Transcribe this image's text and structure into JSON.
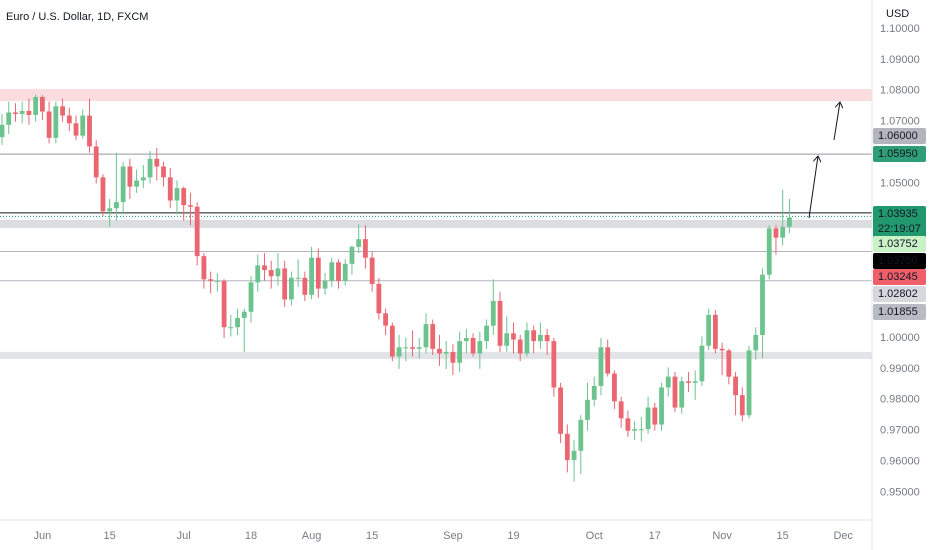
{
  "chart_data": {
    "type": "candlestick",
    "title": "Euro / U.S. Dollar, 1D, FXCM",
    "y_axis_label": "USD",
    "up_color": "#6cc38e",
    "down_color": "#ea6670",
    "ylim": [
      0.9411,
      1.1094
    ],
    "yticks": [
      {
        "value": 1.1,
        "label": "1.10000"
      },
      {
        "value": 1.09,
        "label": "1.09000"
      },
      {
        "value": 1.08,
        "label": "1.08000"
      },
      {
        "value": 1.07,
        "label": "1.07000"
      },
      {
        "value": 1.05,
        "label": "1.05000"
      },
      {
        "value": 1.0,
        "label": "1.00000"
      },
      {
        "value": 0.99,
        "label": "0.99000"
      },
      {
        "value": 0.98,
        "label": "0.98000"
      },
      {
        "value": 0.97,
        "label": "0.97000"
      },
      {
        "value": 0.96,
        "label": "0.96000"
      },
      {
        "value": 0.95,
        "label": "0.95000"
      }
    ],
    "grid": false,
    "categories": [
      null,
      null,
      null,
      null,
      null,
      null,
      "Jun",
      null,
      null,
      null,
      null,
      null,
      null,
      null,
      null,
      null,
      "15",
      null,
      null,
      null,
      null,
      null,
      null,
      null,
      null,
      null,
      null,
      "Jul",
      null,
      null,
      null,
      null,
      null,
      null,
      null,
      null,
      null,
      "18",
      null,
      null,
      null,
      null,
      null,
      null,
      null,
      null,
      "Aug",
      null,
      null,
      null,
      null,
      null,
      null,
      null,
      null,
      "15",
      null,
      null,
      null,
      null,
      null,
      null,
      null,
      null,
      null,
      null,
      null,
      "Sep",
      null,
      null,
      null,
      null,
      null,
      null,
      null,
      null,
      "19",
      null,
      null,
      null,
      null,
      null,
      null,
      null,
      null,
      null,
      null,
      null,
      "Oct",
      null,
      null,
      null,
      null,
      null,
      null,
      null,
      null,
      "17",
      null,
      null,
      null,
      null,
      null,
      null,
      null,
      null,
      null,
      "Nov",
      null,
      null,
      null,
      null,
      null,
      null,
      null,
      null,
      "15",
      null,
      null,
      null,
      null,
      null,
      null,
      null,
      null,
      "Dec"
    ],
    "open": [
      1.065,
      1.069,
      1.073,
      1.0725,
      1.0735,
      1.0722,
      1.078,
      1.0733,
      1.0648,
      1.075,
      1.072,
      1.0695,
      1.0655,
      1.072,
      1.062,
      1.052,
      1.041,
      1.042,
      1.044,
      1.0555,
      1.049,
      1.051,
      1.052,
      1.058,
      1.0555,
      1.052,
      1.0445,
      1.0485,
      1.043,
      1.0425,
      1.0265,
      1.019,
      1.0185,
      1.0185,
      1.0035,
      1.0035,
      1.0065,
      1.0085,
      1.018,
      1.0235,
      1.022,
      1.02,
      1.0225,
      1.0125,
      1.0195,
      1.0195,
      1.014,
      1.026,
      1.016,
      1.0185,
      1.0245,
      1.0185,
      1.024,
      1.0295,
      1.032,
      1.026,
      1.0175,
      1.008,
      1.004,
      0.994,
      0.997,
      0.997,
      0.9965,
      0.997,
      1.0045,
      0.9965,
      0.995,
      0.9955,
      0.992,
      0.999,
      1.0,
      0.995,
      0.999,
      1.004,
      1.012,
      0.9975,
      1.0015,
      0.9995,
      0.995,
      1.0025,
      0.999,
      1.001,
      0.999,
      0.984,
      0.969,
      0.9605,
      0.9635,
      0.9735,
      0.98,
      0.9845,
      0.997,
      0.9885,
      0.9795,
      0.974,
      0.97,
      0.9705,
      0.9705,
      0.9775,
      0.972,
      0.984,
      0.9875,
      0.9775,
      0.986,
      0.9855,
      0.986,
      0.9975,
      1.0075,
      0.9965,
      0.996,
      0.9875,
      0.9815,
      0.975,
      0.996,
      1.001,
      1.0205,
      1.0355,
      1.0325,
      1.036,
      null,
      null,
      null,
      null,
      null,
      null,
      null,
      null
    ],
    "high": [
      1.0725,
      1.0765,
      1.076,
      1.0765,
      1.0775,
      1.0788,
      1.0786,
      1.0765,
      1.0765,
      1.0775,
      1.0745,
      1.072,
      1.074,
      1.0775,
      1.064,
      1.053,
      1.045,
      1.06,
      1.057,
      1.058,
      1.0545,
      1.056,
      1.0605,
      1.0615,
      1.057,
      1.055,
      1.051,
      1.049,
      1.047,
      1.044,
      1.0275,
      1.0215,
      1.021,
      1.019,
      1.0075,
      1.0095,
      1.0095,
      1.02,
      1.027,
      1.0275,
      1.025,
      1.0275,
      1.025,
      1.0215,
      1.0255,
      1.0215,
      1.0295,
      1.029,
      1.021,
      1.026,
      1.0255,
      1.0255,
      1.03,
      1.0368,
      1.0365,
      1.028,
      1.0195,
      1.0095,
      1.005,
      1.001,
      1.0,
      1.0025,
      1.0,
      1.008,
      1.006,
      1.001,
      0.999,
      0.998,
      1.002,
      1.003,
      1.0015,
      1.002,
      1.006,
      1.019,
      1.015,
      1.007,
      1.005,
      1.001,
      1.005,
      1.004,
      1.005,
      1.003,
      1.0,
      0.9855,
      0.972,
      0.967,
      0.975,
      0.9855,
      0.9875,
      1.0,
      0.9995,
      0.9895,
      0.981,
      0.9765,
      0.973,
      0.9745,
      0.981,
      0.979,
      0.9855,
      0.9905,
      0.989,
      0.9875,
      0.989,
      0.9895,
      1.0005,
      1.0095,
      1.009,
      0.9985,
      0.9965,
      0.989,
      0.984,
      0.9975,
      1.0035,
      1.0225,
      1.0365,
      1.0365,
      1.048,
      1.045,
      null,
      null,
      null,
      null,
      null,
      null,
      null,
      null
    ],
    "low": [
      1.0625,
      1.066,
      1.07,
      1.0695,
      1.069,
      1.07,
      1.0705,
      1.063,
      1.063,
      1.07,
      1.067,
      1.064,
      1.0645,
      1.06,
      1.05,
      1.0395,
      1.036,
      1.038,
      1.04,
      1.045,
      1.047,
      1.0485,
      1.05,
      1.051,
      1.049,
      1.042,
      1.04,
      1.038,
      1.0365,
      1.0235,
      1.016,
      1.0145,
      1.015,
      1.0,
      1.0005,
      1.001,
      0.9955,
      1.005,
      1.015,
      1.0185,
      1.016,
      1.017,
      1.01,
      1.0105,
      1.0165,
      1.012,
      1.0125,
      1.013,
      1.014,
      1.0165,
      1.016,
      1.017,
      1.0205,
      1.0275,
      1.0225,
      1.015,
      1.006,
      1.001,
      0.9925,
      0.99,
      0.9925,
      0.994,
      0.9935,
      0.995,
      0.9945,
      0.991,
      0.99,
      0.988,
      0.989,
      0.995,
      0.994,
      0.99,
      0.9965,
      1.001,
      0.9955,
      0.9955,
      0.995,
      0.9925,
      0.994,
      0.995,
      0.9965,
      0.9945,
      0.981,
      0.966,
      0.9565,
      0.9535,
      0.956,
      0.97,
      0.978,
      0.9815,
      0.9875,
      0.977,
      0.971,
      0.968,
      0.967,
      0.9665,
      0.969,
      0.97,
      0.97,
      0.981,
      0.976,
      0.9755,
      0.9825,
      0.98,
      0.9845,
      0.996,
      0.995,
      0.988,
      0.985,
      0.975,
      0.973,
      0.974,
      0.993,
      0.9935,
      1.019,
      1.027,
      1.03,
      1.034,
      null,
      null,
      null,
      null,
      null,
      null,
      null,
      null
    ],
    "close": [
      1.069,
      1.073,
      1.0725,
      1.0735,
      1.0722,
      1.078,
      1.0733,
      1.0648,
      1.075,
      1.072,
      1.0695,
      1.0655,
      1.072,
      1.062,
      1.052,
      1.041,
      1.042,
      1.044,
      1.0555,
      1.049,
      1.051,
      1.052,
      1.058,
      1.0555,
      1.052,
      1.0445,
      1.0485,
      1.043,
      1.0425,
      1.0265,
      1.019,
      1.0185,
      1.0185,
      1.0035,
      1.0035,
      1.0065,
      1.0085,
      1.018,
      1.0235,
      1.022,
      1.02,
      1.0225,
      1.0125,
      1.0195,
      1.0195,
      1.014,
      1.026,
      1.016,
      1.0185,
      1.0245,
      1.0185,
      1.024,
      1.0295,
      1.032,
      1.026,
      1.0175,
      1.008,
      1.004,
      0.994,
      0.997,
      0.997,
      0.9965,
      0.997,
      1.0045,
      0.9965,
      0.995,
      0.9955,
      0.992,
      0.999,
      1.0,
      0.995,
      0.999,
      1.004,
      1.012,
      0.9975,
      1.0015,
      0.9995,
      0.995,
      1.0025,
      0.999,
      1.001,
      0.999,
      0.984,
      0.969,
      0.9605,
      0.9635,
      0.9735,
      0.98,
      0.9845,
      0.997,
      0.9885,
      0.9795,
      0.974,
      0.97,
      0.9705,
      0.9705,
      0.9775,
      0.972,
      0.984,
      0.9875,
      0.9775,
      0.986,
      0.9855,
      0.986,
      0.9975,
      1.0075,
      0.9965,
      0.996,
      0.9875,
      0.9815,
      0.975,
      0.996,
      1.001,
      1.0205,
      1.0355,
      1.0325,
      1.036,
      1.039,
      null,
      null,
      null,
      null,
      null,
      null,
      null,
      null
    ],
    "zones": [
      {
        "from": 1.0767,
        "to": 1.0806,
        "color": "#fbdde0"
      },
      {
        "from": 1.0356,
        "to": 1.0382,
        "color": "#dcdde0"
      },
      {
        "from": 0.9932,
        "to": 0.9955,
        "color": "#e3e4e7"
      }
    ],
    "hlines": [
      {
        "value": 1.0595,
        "color": "#9598a1"
      },
      {
        "value": 1.0405,
        "color": "#131722"
      },
      {
        "value": 1.02802,
        "color": "#b2b5be"
      },
      {
        "value": 1.01855,
        "color": "#b2b5be"
      }
    ],
    "current_price_line": {
      "value": 1.03935,
      "color": "#22986f"
    },
    "price_labels": [
      {
        "value": 1.06,
        "label": "1.06000",
        "bg": "#b2b5be",
        "fg": "#131722"
      },
      {
        "value": 1.0595,
        "label": "1.05950",
        "bg": "#2f9e76",
        "fg": "#ffffff"
      },
      {
        "value": 1.03935,
        "label": "1.03935",
        "sublabel": "22:19:07",
        "bg": "#22986f",
        "fg": "#ffffff"
      },
      {
        "value": 1.03752,
        "label": "1.03752",
        "bg": "#c9f2c7",
        "fg": "#131722"
      },
      {
        "value": 1.0375,
        "label": "1.03750",
        "bg": "#000000",
        "fg": "#ffffff"
      },
      {
        "value": 1.03245,
        "label": "1.03245",
        "bg": "#ef5f6a",
        "fg": "#ffffff"
      },
      {
        "value": 1.02802,
        "label": "1.02802",
        "bg": "#d6d8de",
        "fg": "#131722"
      },
      {
        "value": 1.01855,
        "label": "1.01855",
        "bg": "#b8bbc3",
        "fg": "#131722"
      }
    ]
  }
}
